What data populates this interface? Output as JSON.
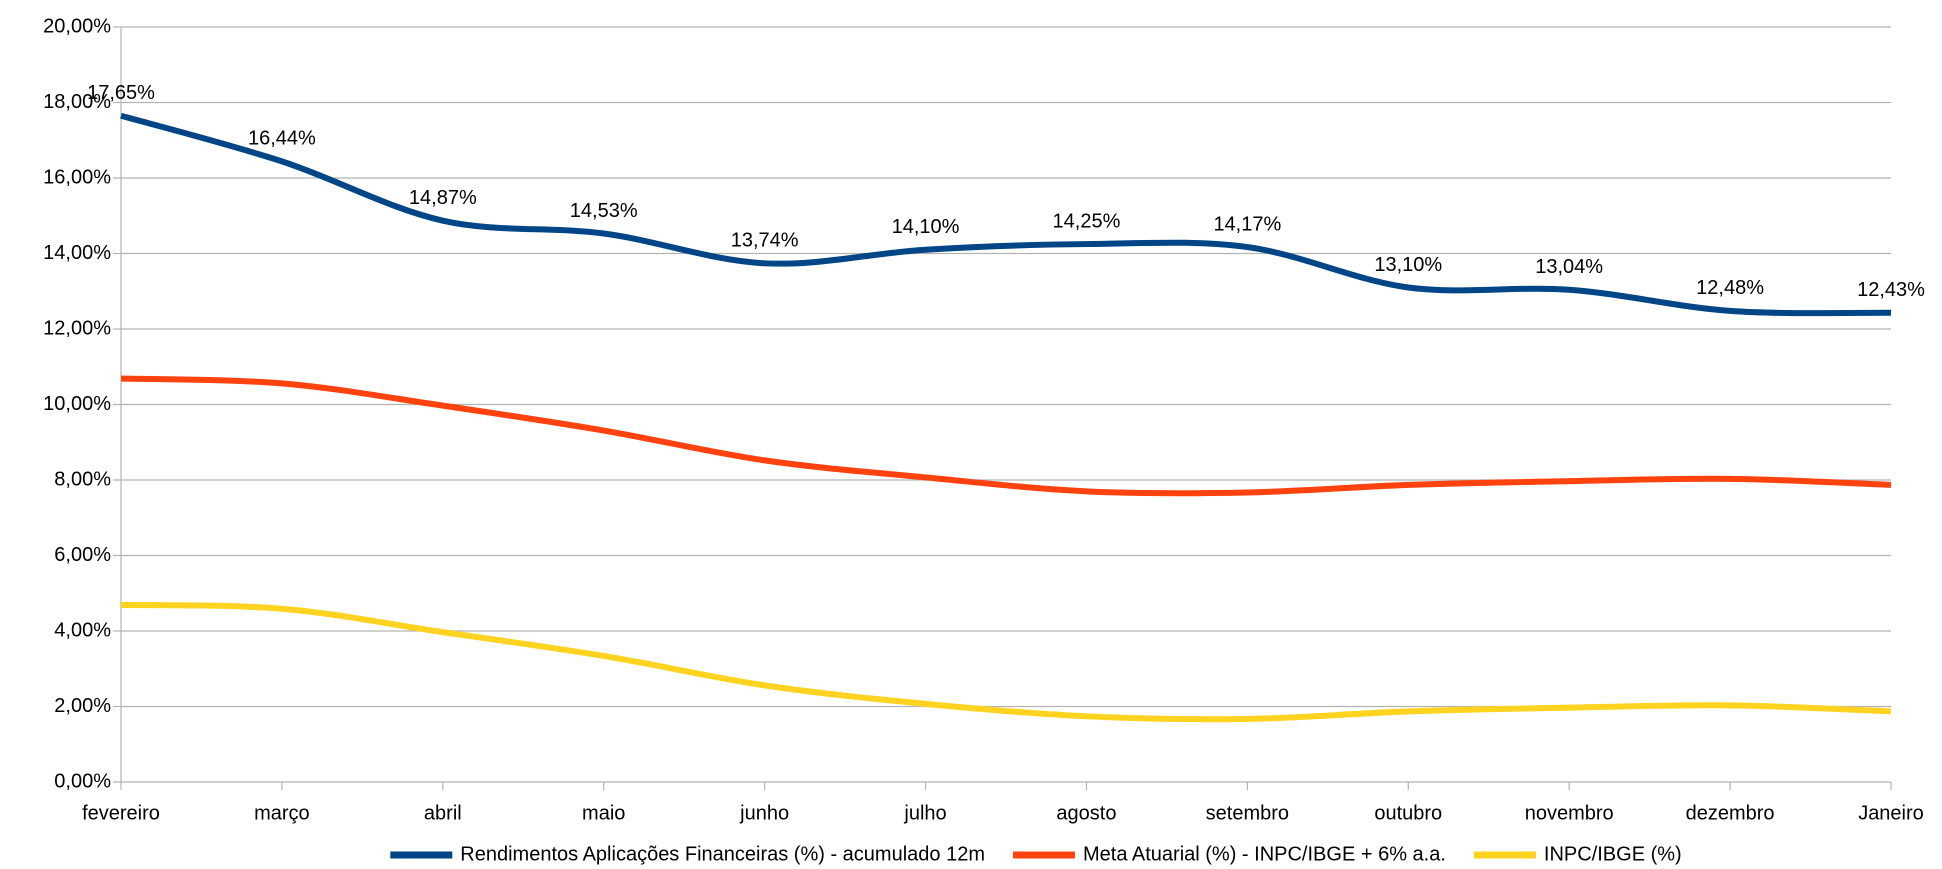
{
  "chart_data": {
    "type": "line",
    "categories": [
      "fevereiro",
      "março",
      "abril",
      "maio",
      "junho",
      "julho",
      "agosto",
      "setembro",
      "outubro",
      "novembro",
      "dezembro",
      "Janeiro"
    ],
    "series": [
      {
        "name": "Rendimentos Aplicações Financeiras (%) - acumulado 12m",
        "color": "#004586",
        "values": [
          17.65,
          16.44,
          14.87,
          14.53,
          13.74,
          14.1,
          14.25,
          14.17,
          13.1,
          13.04,
          12.48,
          12.43
        ],
        "value_labels": [
          "17,65%",
          "16,44%",
          "14,87%",
          "14,53%",
          "13,74%",
          "14,10%",
          "14,25%",
          "14,17%",
          "13,10%",
          "13,04%",
          "12,48%",
          "12,43%"
        ]
      },
      {
        "name": "Meta Atuarial (%) - INPC/IBGE + 6% a.a.",
        "color": "#ff420e",
        "values": [
          10.69,
          10.56,
          9.97,
          9.31,
          8.52,
          8.07,
          7.7,
          7.67,
          7.87,
          7.97,
          8.03,
          7.87
        ]
      },
      {
        "name": "INPC/IBGE (%)",
        "color": "#ffd320",
        "values": [
          4.69,
          4.59,
          3.97,
          3.34,
          2.56,
          2.07,
          1.74,
          1.67,
          1.87,
          1.97,
          2.03,
          1.87
        ]
      }
    ],
    "ylim": [
      0,
      20
    ],
    "yticks": [
      {
        "value": 0,
        "label": "0,00%"
      },
      {
        "value": 2,
        "label": "2,00%"
      },
      {
        "value": 4,
        "label": "4,00%"
      },
      {
        "value": 6,
        "label": "6,00%"
      },
      {
        "value": 8,
        "label": "8,00%"
      },
      {
        "value": 10,
        "label": "10,00%"
      },
      {
        "value": 12,
        "label": "12,00%"
      },
      {
        "value": 14,
        "label": "14,00%"
      },
      {
        "value": 16,
        "label": "16,00%"
      },
      {
        "value": 18,
        "label": "18,00%"
      },
      {
        "value": 20,
        "label": "20,00%"
      }
    ],
    "grid": true,
    "legend": "bottom"
  }
}
